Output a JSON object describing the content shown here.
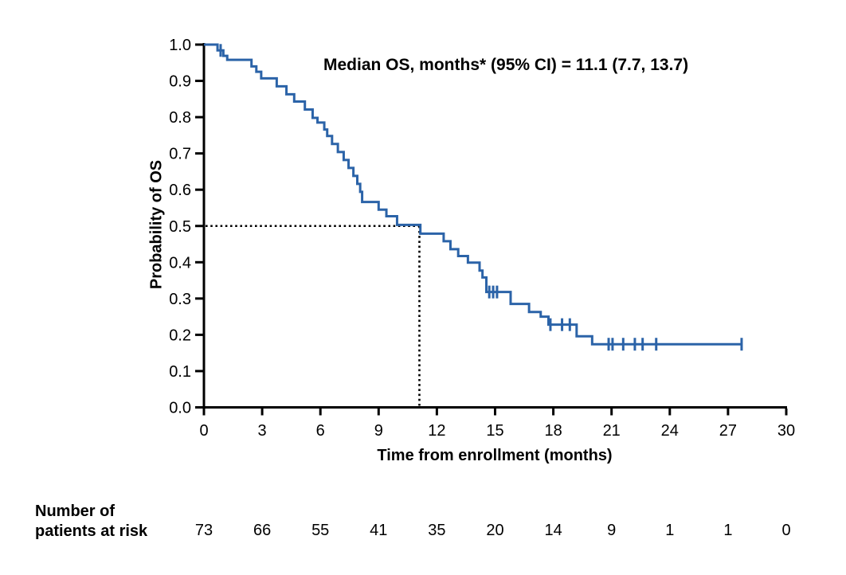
{
  "figure": {
    "annotation": "Median OS, months* (95% CI) = 11.1 (7.7, 13.7)"
  },
  "chart_data": {
    "type": "line",
    "subtype": "kaplan-meier-step",
    "title": "",
    "annotation": "Median OS, months* (95% CI) = 11.1 (7.7, 13.7)",
    "xlabel": "Time from enrollment (months)",
    "ylabel": "Probability of OS",
    "xlim": [
      0,
      30
    ],
    "ylim": [
      0.0,
      1.0
    ],
    "x_tick_labels": [
      "0",
      "3",
      "6",
      "9",
      "12",
      "15",
      "18",
      "21",
      "24",
      "27",
      "30"
    ],
    "y_tick_labels": [
      "1.0",
      "0.9",
      "0.8",
      "0.7",
      "0.6",
      "0.5",
      "0.4",
      "0.3",
      "0.2",
      "0.1",
      "0.0"
    ],
    "grid": false,
    "legend": "none",
    "line_color": "#2b63a8",
    "axis_color": "#000000",
    "reference_line_color": "#000000",
    "median": {
      "time": 11.1,
      "probability": 0.5,
      "ci_lower": 7.7,
      "ci_upper": 13.7
    },
    "end_time": 27.7,
    "steps": [
      {
        "t": 0.0,
        "p": 1.0
      },
      {
        "t": 0.7,
        "p": 0.984
      },
      {
        "t": 1.0,
        "p": 0.969
      },
      {
        "t": 1.2,
        "p": 0.958
      },
      {
        "t": 2.45,
        "p": 0.94
      },
      {
        "t": 2.7,
        "p": 0.925
      },
      {
        "t": 2.95,
        "p": 0.907
      },
      {
        "t": 3.75,
        "p": 0.885
      },
      {
        "t": 4.25,
        "p": 0.863
      },
      {
        "t": 4.65,
        "p": 0.843
      },
      {
        "t": 5.2,
        "p": 0.821
      },
      {
        "t": 5.6,
        "p": 0.798
      },
      {
        "t": 5.85,
        "p": 0.785
      },
      {
        "t": 6.2,
        "p": 0.766
      },
      {
        "t": 6.35,
        "p": 0.748
      },
      {
        "t": 6.6,
        "p": 0.726
      },
      {
        "t": 6.9,
        "p": 0.704
      },
      {
        "t": 7.2,
        "p": 0.682
      },
      {
        "t": 7.45,
        "p": 0.66
      },
      {
        "t": 7.7,
        "p": 0.638
      },
      {
        "t": 7.9,
        "p": 0.616
      },
      {
        "t": 8.05,
        "p": 0.594
      },
      {
        "t": 8.15,
        "p": 0.566
      },
      {
        "t": 9.0,
        "p": 0.545
      },
      {
        "t": 9.4,
        "p": 0.527
      },
      {
        "t": 9.95,
        "p": 0.503
      },
      {
        "t": 11.15,
        "p": 0.479
      },
      {
        "t": 12.35,
        "p": 0.458
      },
      {
        "t": 12.7,
        "p": 0.436
      },
      {
        "t": 13.1,
        "p": 0.417
      },
      {
        "t": 13.6,
        "p": 0.399
      },
      {
        "t": 14.2,
        "p": 0.377
      },
      {
        "t": 14.35,
        "p": 0.358
      },
      {
        "t": 14.55,
        "p": 0.318
      },
      {
        "t": 15.8,
        "p": 0.285
      },
      {
        "t": 16.75,
        "p": 0.263
      },
      {
        "t": 17.35,
        "p": 0.25
      },
      {
        "t": 17.75,
        "p": 0.228
      },
      {
        "t": 19.2,
        "p": 0.196
      },
      {
        "t": 20.0,
        "p": 0.174
      }
    ],
    "censor_marks": [
      {
        "t": 0.86,
        "p": 0.984
      },
      {
        "t": 14.7,
        "p": 0.318
      },
      {
        "t": 14.9,
        "p": 0.318
      },
      {
        "t": 15.1,
        "p": 0.318
      },
      {
        "t": 17.85,
        "p": 0.228
      },
      {
        "t": 18.45,
        "p": 0.228
      },
      {
        "t": 18.85,
        "p": 0.228
      },
      {
        "t": 20.85,
        "p": 0.174
      },
      {
        "t": 21.05,
        "p": 0.174
      },
      {
        "t": 21.6,
        "p": 0.174
      },
      {
        "t": 22.2,
        "p": 0.174
      },
      {
        "t": 22.6,
        "p": 0.174
      },
      {
        "t": 23.3,
        "p": 0.174
      },
      {
        "t": 27.7,
        "p": 0.174
      }
    ],
    "risk_table": {
      "label_line1": "Number of",
      "label_line2": "patients at risk",
      "times": [
        0,
        3,
        6,
        9,
        12,
        15,
        18,
        21,
        24,
        27,
        30
      ],
      "values": [
        "73",
        "66",
        "55",
        "41",
        "35",
        "20",
        "14",
        "9",
        "1",
        "1",
        "0"
      ]
    }
  }
}
